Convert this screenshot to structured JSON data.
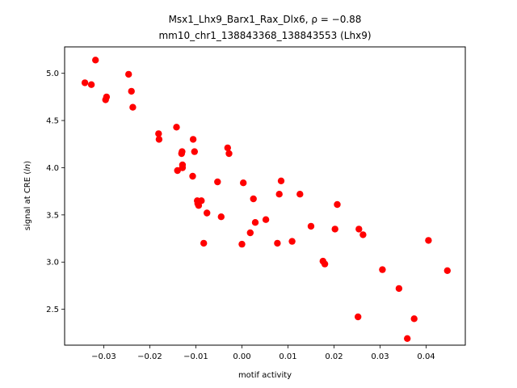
{
  "chart_data": {
    "type": "scatter",
    "title_line1": "Msx1_Lhx9_Barx1_Rax_Dlx6, ρ = −0.88",
    "title_line2": "mm10_chr1_138843368_138843553 (Lhx9)",
    "xlabel": "motif activity",
    "ylabel": "signal at CRE (ln)",
    "xlim": [
      -0.0385,
      0.0485
    ],
    "ylim": [
      2.12,
      5.28
    ],
    "xticks": [
      -0.03,
      -0.02,
      -0.01,
      0.0,
      0.01,
      0.02,
      0.03,
      0.04
    ],
    "xtick_labels": [
      "−0.03",
      "−0.02",
      "−0.01",
      "0.00",
      "0.01",
      "0.02",
      "0.03",
      "0.04"
    ],
    "yticks": [
      2.5,
      3.0,
      3.5,
      4.0,
      4.5,
      5.0
    ],
    "ytick_labels": [
      "2.5",
      "3.0",
      "3.5",
      "4.0",
      "4.5",
      "5.0"
    ],
    "marker_color": "#ff0000",
    "grid": false,
    "points": [
      {
        "x": -0.0341,
        "y": 4.9
      },
      {
        "x": -0.0327,
        "y": 4.88
      },
      {
        "x": -0.0318,
        "y": 5.14
      },
      {
        "x": -0.0296,
        "y": 4.72
      },
      {
        "x": -0.0294,
        "y": 4.75
      },
      {
        "x": -0.0246,
        "y": 4.99
      },
      {
        "x": -0.024,
        "y": 4.81
      },
      {
        "x": -0.0237,
        "y": 4.64
      },
      {
        "x": -0.0181,
        "y": 4.36
      },
      {
        "x": -0.018,
        "y": 4.3
      },
      {
        "x": -0.0142,
        "y": 4.43
      },
      {
        "x": -0.014,
        "y": 3.97
      },
      {
        "x": -0.0131,
        "y": 4.15
      },
      {
        "x": -0.013,
        "y": 4.17
      },
      {
        "x": -0.0129,
        "y": 4.03
      },
      {
        "x": -0.0129,
        "y": 4.0
      },
      {
        "x": -0.0107,
        "y": 3.91
      },
      {
        "x": -0.0106,
        "y": 4.3
      },
      {
        "x": -0.0103,
        "y": 4.17
      },
      {
        "x": -0.0097,
        "y": 3.65
      },
      {
        "x": -0.0096,
        "y": 3.62
      },
      {
        "x": -0.0094,
        "y": 3.6
      },
      {
        "x": -0.0088,
        "y": 3.65
      },
      {
        "x": -0.0083,
        "y": 3.2
      },
      {
        "x": -0.0076,
        "y": 3.52
      },
      {
        "x": -0.0053,
        "y": 3.85
      },
      {
        "x": -0.0045,
        "y": 3.48
      },
      {
        "x": -0.0031,
        "y": 4.21
      },
      {
        "x": -0.0028,
        "y": 4.15
      },
      {
        "x": 0.0,
        "y": 3.19
      },
      {
        "x": 0.0003,
        "y": 3.84
      },
      {
        "x": 0.0018,
        "y": 3.31
      },
      {
        "x": 0.0025,
        "y": 3.67
      },
      {
        "x": 0.0029,
        "y": 3.42
      },
      {
        "x": 0.0052,
        "y": 3.45
      },
      {
        "x": 0.0077,
        "y": 3.2
      },
      {
        "x": 0.0081,
        "y": 3.72
      },
      {
        "x": 0.0085,
        "y": 3.86
      },
      {
        "x": 0.0109,
        "y": 3.22
      },
      {
        "x": 0.0126,
        "y": 3.72
      },
      {
        "x": 0.015,
        "y": 3.38
      },
      {
        "x": 0.0176,
        "y": 3.01
      },
      {
        "x": 0.018,
        "y": 2.98
      },
      {
        "x": 0.0202,
        "y": 3.35
      },
      {
        "x": 0.0207,
        "y": 3.61
      },
      {
        "x": 0.0252,
        "y": 2.42
      },
      {
        "x": 0.0254,
        "y": 3.35
      },
      {
        "x": 0.0263,
        "y": 3.29
      },
      {
        "x": 0.0305,
        "y": 2.92
      },
      {
        "x": 0.0341,
        "y": 2.72
      },
      {
        "x": 0.0359,
        "y": 2.19
      },
      {
        "x": 0.0374,
        "y": 2.4
      },
      {
        "x": 0.0405,
        "y": 3.23
      },
      {
        "x": 0.0446,
        "y": 2.91
      }
    ]
  }
}
